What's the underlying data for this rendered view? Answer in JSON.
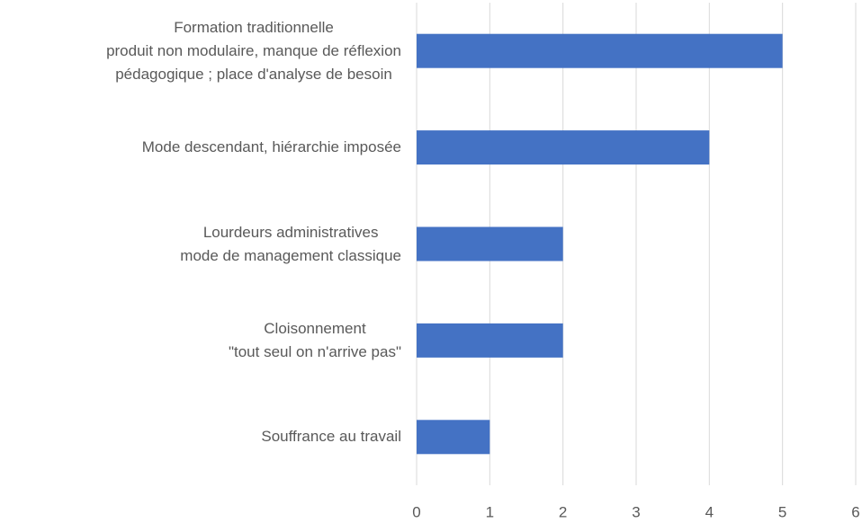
{
  "chart_data": {
    "type": "bar",
    "orientation": "horizontal",
    "categories": [
      "Formation traditionnelle\nproduit non modulaire, manque de réflexion\npédagogique ; place d'analyse de besoin",
      "Mode descendant, hiérarchie imposée",
      "Lourdeurs administratives\nmode de management classique",
      "Cloisonnement\n\"tout seul on n'arrive pas\"",
      "Souffrance au travail"
    ],
    "values": [
      5,
      4,
      2,
      2,
      1
    ],
    "color": "#4472c4",
    "xlim": [
      0,
      6
    ],
    "xticks": [
      0,
      1,
      2,
      3,
      4,
      5,
      6
    ],
    "grid": true
  }
}
